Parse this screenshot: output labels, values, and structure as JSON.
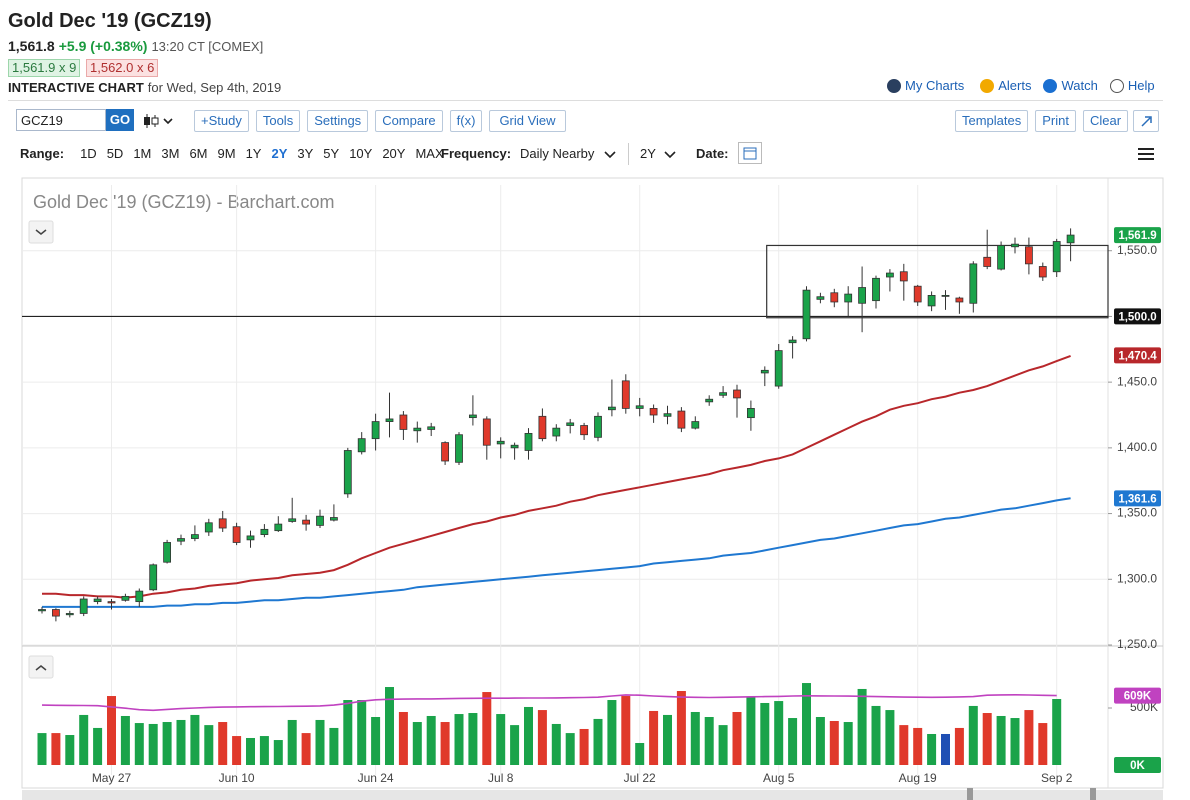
{
  "header": {
    "title": "Gold Dec '19 (GCZ19)",
    "price": "1,561.8",
    "change": "+5.9 (+0.38%)",
    "time": "13:20 CT [COMEX]",
    "bid": "1,561.9 x 9",
    "ask": "1,562.0 x 6",
    "subtitle_bold": "INTERACTIVE CHART",
    "subtitle": "for Wed, Sep 4th, 2019",
    "links": [
      "My Charts",
      "Alerts",
      "Watch",
      "Help"
    ]
  },
  "toolbar": {
    "symbol": "GCZ19",
    "go": "GO",
    "buttons": [
      "+Study",
      "Tools",
      "Settings",
      "Compare",
      "f(x)",
      "Grid View"
    ],
    "right_buttons": [
      "Templates",
      "Print",
      "Clear"
    ]
  },
  "range_bar": {
    "range_label": "Range:",
    "ranges": [
      "1D",
      "5D",
      "1M",
      "3M",
      "6M",
      "9M",
      "1Y",
      "2Y",
      "3Y",
      "5Y",
      "10Y",
      "20Y",
      "MAX"
    ],
    "active": 7,
    "frequency_label": "Frequency:",
    "frequency": "Daily Nearby",
    "period": "2Y",
    "date_label": "Date:"
  },
  "chart_data": [
    {
      "type": "candlestick",
      "title": "Gold Dec '19 (GCZ19) - Barchart.com",
      "categories": [
        null,
        null,
        null,
        null,
        null,
        "May 27",
        null,
        null,
        null,
        null,
        null,
        null,
        null,
        null,
        "Jun 10",
        null,
        null,
        null,
        null,
        null,
        null,
        null,
        null,
        null,
        "Jun 24",
        null,
        null,
        null,
        null,
        null,
        null,
        null,
        null,
        "Jul 8",
        null,
        null,
        null,
        null,
        null,
        null,
        null,
        null,
        null,
        "Jul 22",
        null,
        null,
        null,
        null,
        null,
        null,
        null,
        null,
        null,
        "Aug 5",
        null,
        null,
        null,
        null,
        null,
        null,
        null,
        null,
        null,
        "Aug 19",
        null,
        null,
        null,
        null,
        null,
        null,
        null,
        null,
        null,
        "Sep 2",
        null
      ],
      "open": [
        1276,
        1277,
        1273,
        1274,
        1283,
        1283,
        1284,
        1283,
        1292,
        1313,
        1329,
        1331,
        1336,
        1346,
        1340,
        1330,
        1334,
        1337,
        1344,
        1345,
        1341,
        1345,
        1365,
        1397,
        1407,
        1420,
        1425,
        1413,
        1414,
        1404,
        1389,
        1423,
        1422,
        1403,
        1400,
        1398,
        1424,
        1409,
        1417,
        1417,
        1408,
        1429,
        1451,
        1430,
        1430,
        1424,
        1428,
        1415,
        1435,
        1440,
        1444,
        1423,
        1457,
        1447,
        1480,
        1483,
        1513,
        1518,
        1511,
        1510,
        1512,
        1530,
        1534,
        1523,
        1508,
        1516,
        1514,
        1510,
        1545,
        1536,
        1553,
        1553,
        1538,
        1534,
        1556
      ],
      "high": [
        1279,
        1278,
        1276,
        1287,
        1287,
        1285,
        1289,
        1293,
        1312,
        1330,
        1334,
        1341,
        1346,
        1352,
        1343,
        1337,
        1342,
        1348,
        1362,
        1349,
        1353,
        1357,
        1400,
        1412,
        1426,
        1442,
        1428,
        1420,
        1419,
        1405,
        1412,
        1440,
        1424,
        1408,
        1404,
        1415,
        1430,
        1418,
        1422,
        1419,
        1427,
        1452,
        1456,
        1438,
        1433,
        1432,
        1431,
        1424,
        1440,
        1447,
        1448,
        1436,
        1462,
        1479,
        1485,
        1523,
        1518,
        1521,
        1523,
        1538,
        1531,
        1536,
        1540,
        1524,
        1519,
        1520,
        1515,
        1542,
        1566,
        1557,
        1560,
        1560,
        1541,
        1559,
        1567
      ],
      "low": [
        1274,
        1268,
        1271,
        1272,
        1281,
        1277,
        1283,
        1279,
        1291,
        1312,
        1326,
        1329,
        1333,
        1336,
        1326,
        1324,
        1332,
        1336,
        1343,
        1337,
        1339,
        1344,
        1362,
        1395,
        1398,
        1408,
        1406,
        1404,
        1409,
        1387,
        1387,
        1417,
        1391,
        1392,
        1391,
        1391,
        1405,
        1405,
        1411,
        1406,
        1405,
        1424,
        1426,
        1424,
        1419,
        1418,
        1412,
        1414,
        1432,
        1438,
        1423,
        1413,
        1447,
        1445,
        1468,
        1481,
        1510,
        1507,
        1500,
        1488,
        1506,
        1519,
        1512,
        1508,
        1504,
        1505,
        1502,
        1503,
        1536,
        1535,
        1548,
        1532,
        1527,
        1530,
        1542
      ],
      "close": [
        1277,
        1272,
        1274,
        1285,
        1285,
        1282,
        1287,
        1291,
        1311,
        1328,
        1331,
        1334,
        1343,
        1339,
        1328,
        1333,
        1338,
        1342,
        1346,
        1342,
        1348,
        1347,
        1398,
        1407,
        1420,
        1422,
        1414,
        1415,
        1416,
        1390,
        1410,
        1425,
        1402,
        1405,
        1402,
        1411,
        1407,
        1415,
        1419,
        1410,
        1424,
        1431,
        1430,
        1432,
        1425,
        1426,
        1415,
        1420,
        1437,
        1442,
        1438,
        1430,
        1459,
        1474,
        1482,
        1520,
        1515,
        1511,
        1517,
        1522,
        1529,
        1533,
        1527,
        1511,
        1516,
        1516,
        1511,
        1540,
        1538,
        1554,
        1555,
        1540,
        1530,
        1557,
        1561.9
      ],
      "up_color": "#1aa34a",
      "down_color": "#e0392b",
      "overlays": [
        {
          "color": "#b8272b",
          "values": [
            1289,
            1289,
            1288,
            1288,
            1287,
            1287,
            1286,
            1287,
            1289,
            1290,
            1292,
            1293,
            1295,
            1296,
            1297,
            1299,
            1300,
            1301,
            1303,
            1304,
            1305,
            1307,
            1311,
            1316,
            1320,
            1324,
            1327,
            1330,
            1333,
            1336,
            1339,
            1342,
            1344,
            1347,
            1349,
            1352,
            1354,
            1356,
            1359,
            1361,
            1364,
            1366,
            1368,
            1370,
            1372,
            1374,
            1376,
            1378,
            1380,
            1383,
            1385,
            1387,
            1390,
            1392,
            1395,
            1400,
            1405,
            1410,
            1415,
            1420,
            1424,
            1429,
            1432,
            1434,
            1437,
            1439,
            1442,
            1444,
            1447,
            1451,
            1455,
            1459,
            1462,
            1466,
            1470
          ]
        },
        {
          "color": "#1f78d1",
          "values": [
            1279,
            1279,
            1279,
            1279,
            1279,
            1279,
            1279,
            1279,
            1279,
            1280,
            1280,
            1281,
            1281,
            1282,
            1282,
            1283,
            1284,
            1284,
            1285,
            1286,
            1286,
            1287,
            1288,
            1289,
            1290,
            1291,
            1292,
            1294,
            1295,
            1296,
            1297,
            1298,
            1299,
            1300,
            1301,
            1302,
            1303,
            1304,
            1305,
            1306,
            1307,
            1308,
            1309,
            1310,
            1312,
            1313,
            1314,
            1315,
            1316,
            1318,
            1319,
            1320,
            1322,
            1324,
            1326,
            1328,
            1330,
            1331,
            1333,
            1335,
            1337,
            1339,
            1341,
            1342,
            1344,
            1346,
            1347,
            1349,
            1351,
            1353,
            1354,
            1356,
            1358,
            1360,
            1361.6
          ]
        }
      ],
      "ylim": [
        1250,
        1600
      ],
      "yticks": [
        {
          "value": 1250,
          "label": "1,250.0"
        },
        {
          "value": 1300,
          "label": "1,300.0"
        },
        {
          "value": 1350,
          "label": "1,350.0"
        },
        {
          "value": 1400,
          "label": "1,400.0"
        },
        {
          "value": 1450,
          "label": "1,450.0"
        },
        {
          "value": 1500,
          "label": "1,500.0"
        },
        {
          "value": 1550,
          "label": "1,550.0"
        }
      ],
      "grid": true,
      "hline": {
        "value": 1500,
        "color": "#222222"
      },
      "box": {
        "low": 1499,
        "high": 1554,
        "x_start": 53
      },
      "tags": [
        {
          "value": 1561.9,
          "label": "1,561.9",
          "color": "#1aa34a"
        },
        {
          "value": 1500,
          "label": "1,500.0",
          "color": "#111111"
        },
        {
          "value": 1470.4,
          "label": "1,470.4",
          "color": "#b8272b"
        },
        {
          "value": 1361.6,
          "label": "1,361.6",
          "color": "#1f78d1"
        }
      ]
    },
    {
      "type": "bar",
      "values": [
        280,
        280,
        263,
        439,
        325,
        605,
        430,
        368,
        360,
        377,
        395,
        439,
        350,
        377,
        254,
        237,
        254,
        219,
        395,
        280,
        395,
        325,
        570,
        570,
        421,
        684,
        465,
        377,
        430,
        377,
        447,
        456,
        640,
        447,
        350,
        509,
        482,
        360,
        280,
        316,
        404,
        570,
        605,
        193,
        474,
        439,
        649,
        465,
        421,
        350,
        465,
        596,
        544,
        561,
        412,
        719,
        421,
        386,
        377,
        667,
        518,
        482,
        350,
        325,
        272,
        272,
        325,
        518,
        456,
        430,
        412,
        482,
        368,
        579,
        null
      ],
      "up_color": "#1aa34a",
      "down_color": "#e0392b",
      "neutral_color": "#1f4fb4",
      "overlays": [
        {
          "color": "#c042c0",
          "values": [
            525,
            524,
            523,
            522,
            520,
            510,
            498,
            485,
            480,
            488,
            495,
            500,
            505,
            508,
            510,
            511,
            512,
            513,
            515,
            516,
            518,
            525,
            540,
            560,
            572,
            576,
            578,
            580,
            580,
            582,
            584,
            585,
            586,
            586,
            587,
            588,
            588,
            589,
            590,
            592,
            595,
            605,
            615,
            612,
            605,
            600,
            596,
            594,
            592,
            594,
            596,
            598,
            600,
            602,
            605,
            607,
            606,
            605,
            604,
            603,
            600,
            598,
            596,
            595,
            594,
            595,
            597,
            600,
            612,
            615,
            616,
            614,
            611,
            609,
            null
          ]
        }
      ],
      "ylim": [
        0,
        1000
      ],
      "yticks": [
        {
          "value": 500,
          "label": "500K"
        }
      ],
      "tags": [
        {
          "value": 609,
          "label": "609K",
          "color": "#c042c0"
        },
        {
          "value": 0,
          "label": "0K",
          "color": "#1aa34a"
        }
      ]
    }
  ]
}
